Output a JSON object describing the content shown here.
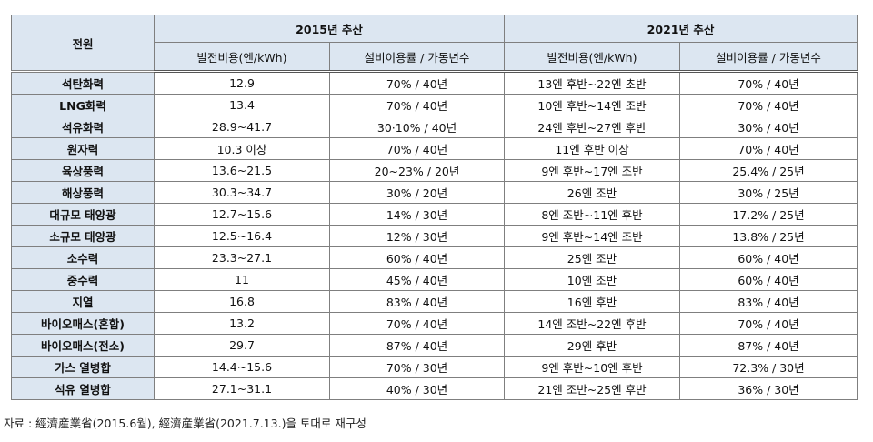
{
  "table": {
    "header_source": "전원",
    "header_2015": "2015년 추산",
    "header_2021": "2021년 추산",
    "sub_cost": "발전비용(엔/kWh)",
    "sub_util": "설비이용률 / 가동년수",
    "rows": [
      {
        "source": "석탄화력",
        "cost2015": "12.9",
        "util2015": "70% / 40년",
        "cost2021": "13엔 후반~22엔 초반",
        "util2021": "70% / 40년"
      },
      {
        "source": "LNG화력",
        "cost2015": "13.4",
        "util2015": "70% / 40년",
        "cost2021": "10엔 후반~14엔 조반",
        "util2021": "70% / 40년"
      },
      {
        "source": "석유화력",
        "cost2015": "28.9~41.7",
        "util2015": "30·10% / 40년",
        "cost2021": "24엔 후반~27엔 후반",
        "util2021": "30% / 40년"
      },
      {
        "source": "원자력",
        "cost2015": "10.3 이상",
        "util2015": "70% / 40년",
        "cost2021": "11엔 후반 이상",
        "util2021": "70% / 40년"
      },
      {
        "source": "육상풍력",
        "cost2015": "13.6~21.5",
        "util2015": "20~23% / 20년",
        "cost2021": "9엔 후반~17엔 조반",
        "util2021": "25.4% / 25년"
      },
      {
        "source": "해상풍력",
        "cost2015": "30.3~34.7",
        "util2015": "30% / 20년",
        "cost2021": "26엔 조반",
        "util2021": "30% / 25년"
      },
      {
        "source": "대규모 태양광",
        "cost2015": "12.7~15.6",
        "util2015": "14% / 30년",
        "cost2021": "8엔 조반~11엔 후반",
        "util2021": "17.2% / 25년"
      },
      {
        "source": "소규모 태양광",
        "cost2015": "12.5~16.4",
        "util2015": "12% / 30년",
        "cost2021": "9엔 후반~14엔 조반",
        "util2021": "13.8% / 25년"
      },
      {
        "source": "소수력",
        "cost2015": "23.3~27.1",
        "util2015": "60% / 40년",
        "cost2021": "25엔 조반",
        "util2021": "60% / 40년"
      },
      {
        "source": "중수력",
        "cost2015": "11",
        "util2015": "45% / 40년",
        "cost2021": "10엔 조반",
        "util2021": "60% / 40년"
      },
      {
        "source": "지열",
        "cost2015": "16.8",
        "util2015": "83% / 40년",
        "cost2021": "16엔 후반",
        "util2021": "83% / 40년"
      },
      {
        "source": "바이오매스(혼합)",
        "cost2015": "13.2",
        "util2015": "70% / 40년",
        "cost2021": "14엔 조반~22엔 후반",
        "util2021": "70% / 40년"
      },
      {
        "source": "바이오매스(전소)",
        "cost2015": "29.7",
        "util2015": "87% / 40년",
        "cost2021": "29엔 후반",
        "util2021": "87% / 40년"
      },
      {
        "source": "가스 열병합",
        "cost2015": "14.4~15.6",
        "util2015": "70% / 30년",
        "cost2021": "9엔 후반~10엔 후반",
        "util2021": "72.3% / 30년"
      },
      {
        "source": "석유 열병합",
        "cost2015": "27.1~31.1",
        "util2015": "40% / 30년",
        "cost2021": "21엔 조반~25엔 후반",
        "util2021": "36% / 30년"
      }
    ]
  },
  "note": "자료 : 經濟産業省(2015.6월), 經濟産業省(2021.7.13.)을 토대로 재구성"
}
